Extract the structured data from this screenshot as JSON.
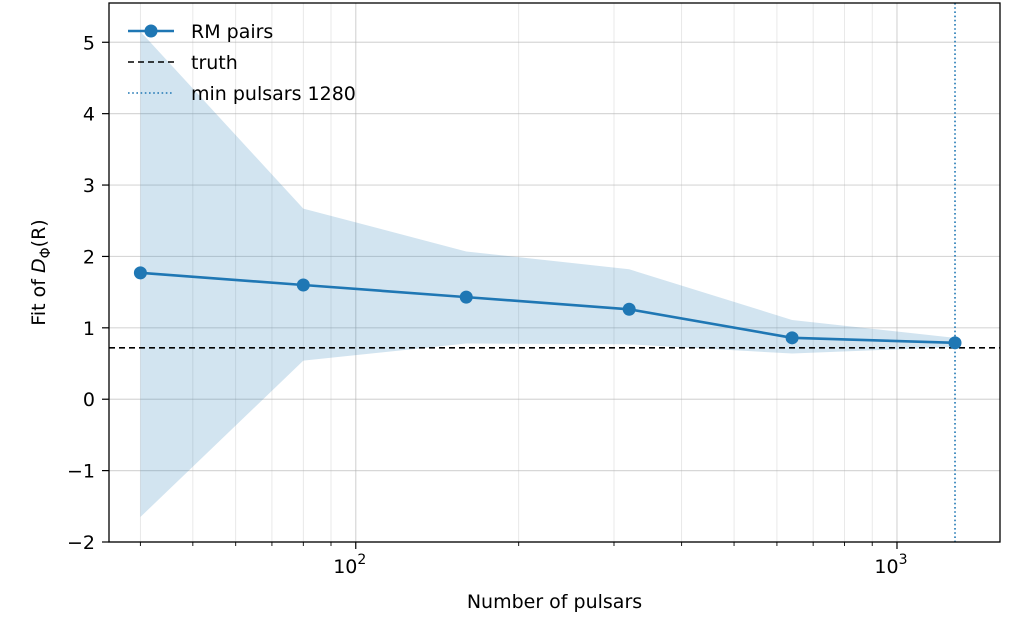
{
  "chart_data": {
    "type": "line",
    "xscale": "log",
    "xlabel": "Number of pulsars",
    "ylabel_prefix": "Fit of ",
    "ylabel_math": "D",
    "ylabel_sub": "Φ",
    "ylabel_suffix": "(R)",
    "xlim": [
      35,
      1550
    ],
    "ylim": [
      -2,
      5.55
    ],
    "grid": true,
    "legend_position": "top-left",
    "x_ticks": [
      {
        "value": 100,
        "base": "10",
        "exp": "2"
      },
      {
        "value": 1000,
        "base": "10",
        "exp": "3"
      }
    ],
    "y_ticks": [
      {
        "value": -2,
        "label": "−2"
      },
      {
        "value": -1,
        "label": "−1"
      },
      {
        "value": 0,
        "label": "0"
      },
      {
        "value": 1,
        "label": "1"
      },
      {
        "value": 2,
        "label": "2"
      },
      {
        "value": 3,
        "label": "3"
      },
      {
        "value": 4,
        "label": "4"
      },
      {
        "value": 5,
        "label": "5"
      }
    ],
    "series": [
      {
        "name": "RM pairs",
        "color": "#1f77b4",
        "x": [
          40,
          80,
          160,
          320,
          640,
          1280
        ],
        "y": [
          1.77,
          1.6,
          1.43,
          1.26,
          0.86,
          0.79
        ],
        "band_lower": [
          -1.65,
          0.54,
          0.78,
          0.77,
          0.64,
          0.73
        ],
        "band_upper": [
          5.15,
          2.67,
          2.07,
          1.82,
          1.11,
          0.86
        ],
        "band_color": "#1f77b4"
      }
    ],
    "truth": {
      "name": "truth",
      "y": 0.72,
      "color": "#000000"
    },
    "min_pulsars": {
      "name": "min pulsars 1280",
      "x": 1280,
      "color": "#1f77b4"
    }
  }
}
